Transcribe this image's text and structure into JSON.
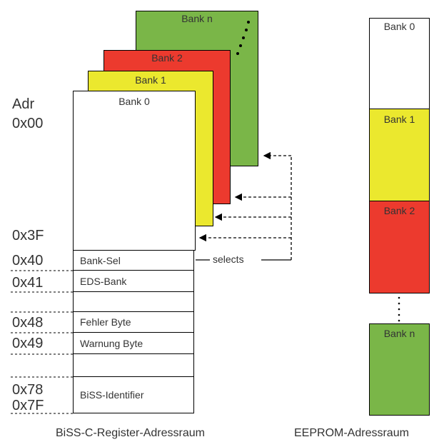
{
  "register_space": {
    "banks_stack": [
      {
        "label": "Bank n",
        "color": "#7ab648"
      },
      {
        "label": "Bank 2",
        "color": "#ec3a2e"
      },
      {
        "label": "Bank 1",
        "color": "#ebe82e"
      },
      {
        "label": "Bank 0",
        "color": "#ffffff"
      }
    ],
    "addr_title": "Adr",
    "addresses": {
      "a00": "0x00",
      "a3f": "0x3F",
      "a40": "0x40",
      "a41": "0x41",
      "a48": "0x48",
      "a49": "0x49",
      "a78": "0x78",
      "a7f": "0x7F"
    },
    "rows": {
      "bank_sel": "Bank-Sel",
      "eds_bank": "EDS-Bank",
      "fehler": "Fehler Byte",
      "warnung": "Warnung Byte",
      "biss_id": "BiSS-Identifier"
    },
    "selects_label": "selects",
    "caption": "BiSS-C-Register-Adressraum"
  },
  "eeprom_space": {
    "banks": [
      {
        "label": "Bank 0",
        "color": "#ffffff"
      },
      {
        "label": "Bank 1",
        "color": "#ebe82e"
      },
      {
        "label": "Bank 2",
        "color": "#ec3a2e"
      },
      {
        "label": "Bank n",
        "color": "#7ab648"
      }
    ],
    "caption": "EEPROM-Adressraum"
  }
}
